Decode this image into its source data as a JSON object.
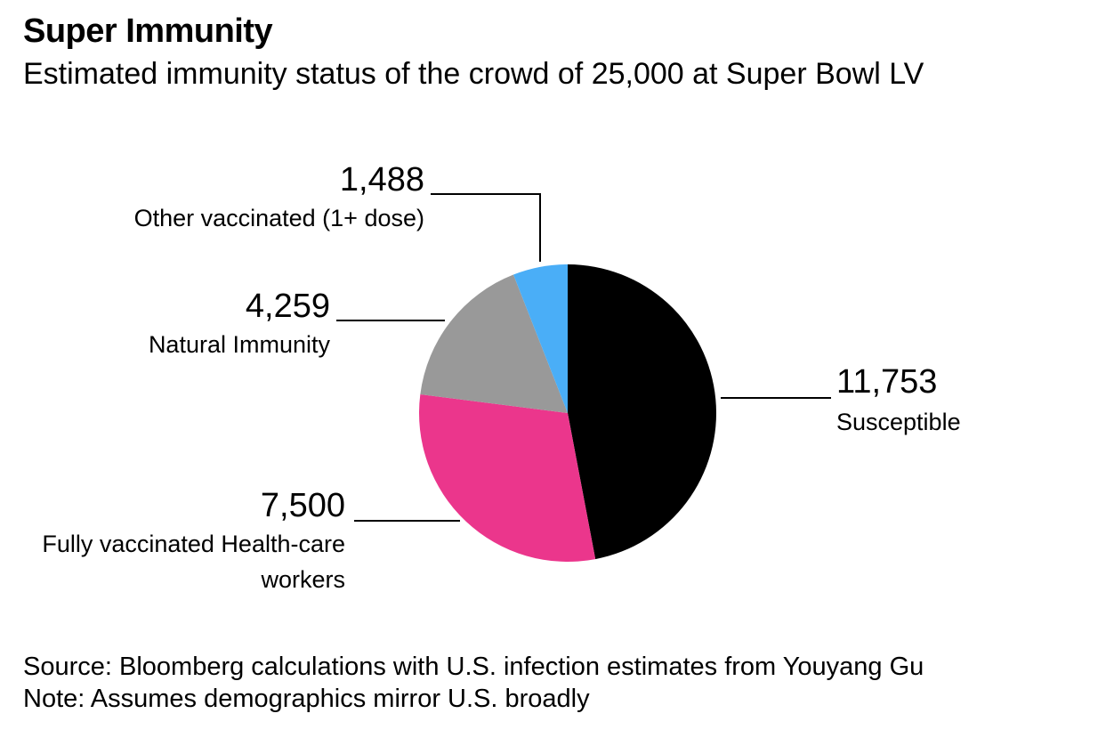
{
  "title": "Super Immunity",
  "subtitle": "Estimated immunity status of the crowd of 25,000 at Super Bowl LV",
  "chart_data": {
    "type": "pie",
    "total": 25000,
    "slices": [
      {
        "label": "Susceptible",
        "value": 11753,
        "display": "11,753",
        "color": "#000000"
      },
      {
        "label": "Fully vaccinated Health-care workers",
        "label_lines": [
          "Fully vaccinated Health-care",
          "workers"
        ],
        "value": 7500,
        "display": "7,500",
        "color": "#eb368c"
      },
      {
        "label": "Natural Immunity",
        "value": 4259,
        "display": "4,259",
        "color": "#999999"
      },
      {
        "label": "Other vaccinated (1+ dose)",
        "value": 1488,
        "display": "1,488",
        "color": "#4aaef7"
      }
    ]
  },
  "footer": {
    "source": "Source: Bloomberg calculations with U.S. infection estimates from Youyang Gu",
    "note": "Note: Assumes demographics mirror U.S. broadly"
  }
}
